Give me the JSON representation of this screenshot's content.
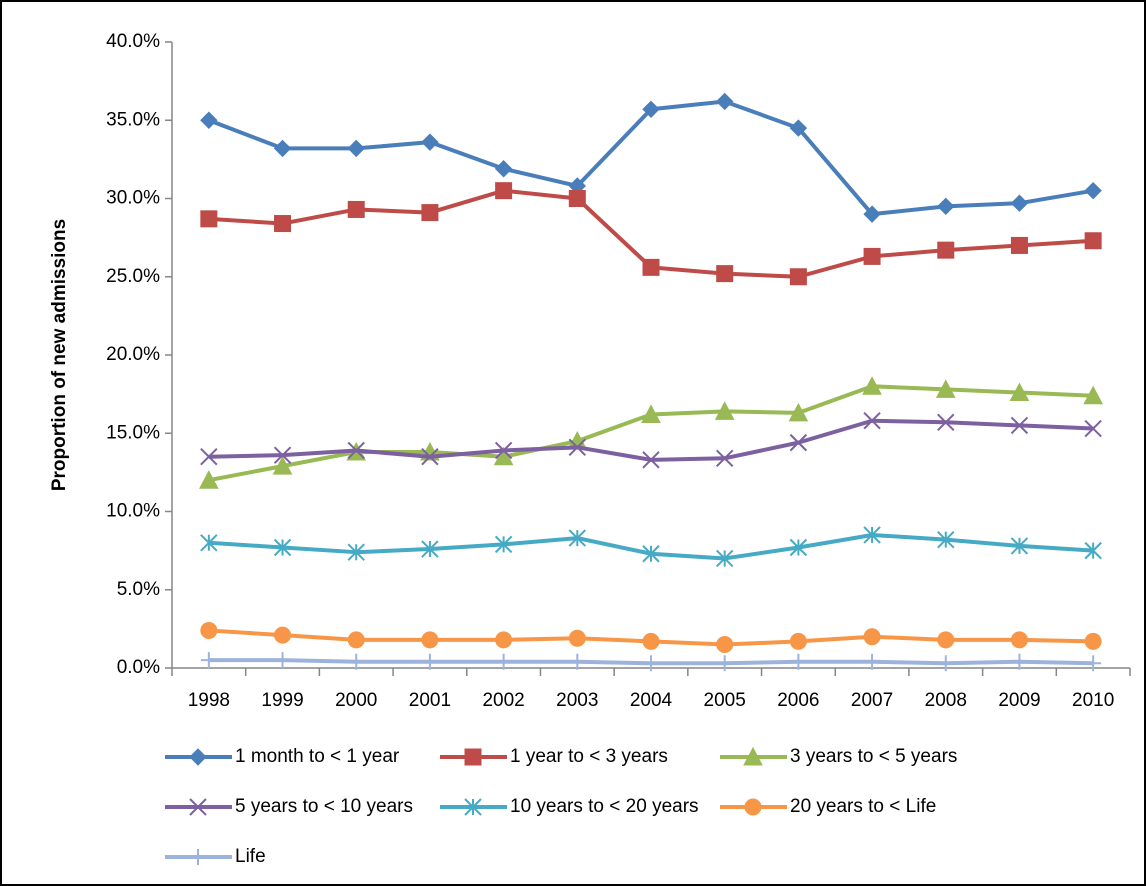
{
  "chart_data": {
    "type": "line",
    "y_label": "Proportion of new admissions",
    "categories": [
      "1998",
      "1999",
      "2000",
      "2001",
      "2002",
      "2003",
      "2004",
      "2005",
      "2006",
      "2007",
      "2008",
      "2009",
      "2010"
    ],
    "ylim": [
      0,
      40
    ],
    "yticks": [
      {
        "value": 0,
        "label": "0.0%"
      },
      {
        "value": 5,
        "label": "5.0%"
      },
      {
        "value": 10,
        "label": "10.0%"
      },
      {
        "value": 15,
        "label": "15.0%"
      },
      {
        "value": 20,
        "label": "20.0%"
      },
      {
        "value": 25,
        "label": "25.0%"
      },
      {
        "value": 30,
        "label": "30.0%"
      },
      {
        "value": 35,
        "label": "35.0%"
      },
      {
        "value": 40,
        "label": "40.0%"
      }
    ],
    "grid": false,
    "legend": "bottom",
    "series": [
      {
        "name": "1 month to < 1 year",
        "color": "#4a7ebb",
        "marker": "diamond",
        "values": [
          35.0,
          33.2,
          33.2,
          33.6,
          31.9,
          30.8,
          35.7,
          36.2,
          34.5,
          29.0,
          29.5,
          29.7,
          30.5
        ]
      },
      {
        "name": "1 year to < 3 years",
        "color": "#be4b48",
        "marker": "square",
        "values": [
          28.7,
          28.4,
          29.3,
          29.1,
          30.5,
          30.0,
          25.6,
          25.2,
          25.0,
          26.3,
          26.7,
          27.0,
          27.3
        ]
      },
      {
        "name": "3 years to < 5 years",
        "color": "#98b954",
        "marker": "triangle",
        "values": [
          12.0,
          12.9,
          13.8,
          13.8,
          13.5,
          14.5,
          16.2,
          16.4,
          16.3,
          18.0,
          17.8,
          17.6,
          17.4
        ]
      },
      {
        "name": "5 years to < 10 years",
        "color": "#7d60a0",
        "marker": "x",
        "values": [
          13.5,
          13.6,
          13.9,
          13.5,
          13.9,
          14.1,
          13.3,
          13.4,
          14.4,
          15.8,
          15.7,
          15.5,
          15.3
        ]
      },
      {
        "name": "10 years to < 20 years",
        "color": "#46aac5",
        "marker": "star",
        "values": [
          8.0,
          7.7,
          7.4,
          7.6,
          7.9,
          8.3,
          7.3,
          7.0,
          7.7,
          8.5,
          8.2,
          7.8,
          7.5
        ]
      },
      {
        "name": "20 years to < Life",
        "color": "#f79646",
        "marker": "circle",
        "values": [
          2.4,
          2.1,
          1.8,
          1.8,
          1.8,
          1.9,
          1.7,
          1.5,
          1.7,
          2.0,
          1.8,
          1.8,
          1.7
        ]
      },
      {
        "name": "Life",
        "color": "#9db3dd",
        "marker": "plus",
        "values": [
          0.5,
          0.5,
          0.4,
          0.4,
          0.4,
          0.4,
          0.3,
          0.3,
          0.4,
          0.4,
          0.3,
          0.4,
          0.3
        ]
      }
    ]
  }
}
